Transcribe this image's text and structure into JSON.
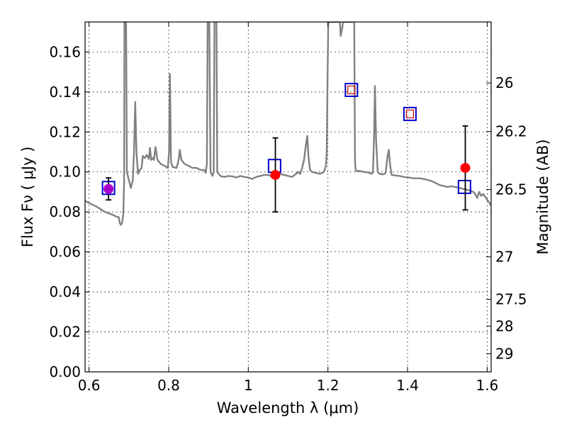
{
  "chart_data": {
    "type": "line",
    "title": "",
    "xlabel": "Wavelength  λ (μm)",
    "ylabel": "Flux  Fν  ( μJy )",
    "y2label": "Magnitude (AB)",
    "xlim": [
      0.59,
      1.61
    ],
    "ylim": [
      0.0,
      0.175
    ],
    "grid": true,
    "grid_style": "dotted",
    "xticks": [
      0.6,
      0.8,
      1.0,
      1.2,
      1.4,
      1.6
    ],
    "xtick_labels": [
      "0.6",
      "0.8",
      "1",
      "1.2",
      "1.4",
      "1.6"
    ],
    "yticks": [
      0.0,
      0.02,
      0.04,
      0.06,
      0.08,
      0.1,
      0.12,
      0.14,
      0.16
    ],
    "ytick_labels": [
      "0.00",
      "0.02",
      "0.04",
      "0.06",
      "0.08",
      "0.10",
      "0.12",
      "0.14",
      "0.16"
    ],
    "right_axis": {
      "label": "Magnitude (AB)",
      "ticks": [
        {
          "mag_label": "26",
          "flux": 0.1445
        },
        {
          "mag_label": "26.2",
          "flux": 0.1202
        },
        {
          "mag_label": "26.5",
          "flux": 0.0912
        },
        {
          "mag_label": "27",
          "flux": 0.0575
        },
        {
          "mag_label": "27.5",
          "flux": 0.0363
        },
        {
          "mag_label": "28",
          "flux": 0.0229
        },
        {
          "mag_label": "29",
          "flux": 0.0091
        }
      ]
    },
    "series": [
      {
        "kind": "spectrum-line",
        "color": "#808080",
        "points": [
          [
            0.59,
            0.0855
          ],
          [
            0.6,
            0.0845
          ],
          [
            0.62,
            0.0825
          ],
          [
            0.64,
            0.08
          ],
          [
            0.66,
            0.0785
          ],
          [
            0.67,
            0.0775
          ],
          [
            0.675,
            0.0773
          ],
          [
            0.677,
            0.0745
          ],
          [
            0.68,
            0.0735
          ],
          [
            0.683,
            0.0745
          ],
          [
            0.686,
            0.0785
          ],
          [
            0.688,
            0.095
          ],
          [
            0.689,
            0.175
          ],
          [
            0.693,
            0.175
          ],
          [
            0.695,
            0.1
          ],
          [
            0.7,
            0.096
          ],
          [
            0.705,
            0.092
          ],
          [
            0.71,
            0.096
          ],
          [
            0.713,
            0.11
          ],
          [
            0.716,
            0.135
          ],
          [
            0.719,
            0.11
          ],
          [
            0.723,
            0.099
          ],
          [
            0.727,
            0.101
          ],
          [
            0.732,
            0.102
          ],
          [
            0.735,
            0.108
          ],
          [
            0.74,
            0.107
          ],
          [
            0.745,
            0.1085
          ],
          [
            0.75,
            0.1065
          ],
          [
            0.753,
            0.112
          ],
          [
            0.756,
            0.106
          ],
          [
            0.76,
            0.107
          ],
          [
            0.763,
            0.106
          ],
          [
            0.767,
            0.1125
          ],
          [
            0.772,
            0.106
          ],
          [
            0.78,
            0.104
          ],
          [
            0.79,
            0.103
          ],
          [
            0.798,
            0.102
          ],
          [
            0.801,
            0.11
          ],
          [
            0.803,
            0.149
          ],
          [
            0.806,
            0.105
          ],
          [
            0.81,
            0.1025
          ],
          [
            0.82,
            0.102
          ],
          [
            0.825,
            0.106
          ],
          [
            0.828,
            0.111
          ],
          [
            0.832,
            0.106
          ],
          [
            0.84,
            0.104
          ],
          [
            0.85,
            0.103
          ],
          [
            0.86,
            0.102
          ],
          [
            0.87,
            0.102
          ],
          [
            0.88,
            0.101
          ],
          [
            0.89,
            0.101
          ],
          [
            0.893,
            0.0995
          ],
          [
            0.896,
            0.104
          ],
          [
            0.898,
            0.175
          ],
          [
            0.902,
            0.175
          ],
          [
            0.905,
            0.1
          ],
          [
            0.91,
            0.098
          ],
          [
            0.913,
            0.1
          ],
          [
            0.915,
            0.175
          ],
          [
            0.92,
            0.175
          ],
          [
            0.922,
            0.1
          ],
          [
            0.93,
            0.098
          ],
          [
            0.94,
            0.0975
          ],
          [
            0.95,
            0.098
          ],
          [
            0.96,
            0.0978
          ],
          [
            0.97,
            0.0972
          ],
          [
            0.98,
            0.098
          ],
          [
            0.99,
            0.0975
          ],
          [
            1.0,
            0.0972
          ],
          [
            1.01,
            0.0965
          ],
          [
            1.02,
            0.0975
          ],
          [
            1.03,
            0.098
          ],
          [
            1.04,
            0.0985
          ],
          [
            1.05,
            0.0985
          ],
          [
            1.06,
            0.0975
          ],
          [
            1.07,
            0.0985
          ],
          [
            1.08,
            0.099
          ],
          [
            1.09,
            0.0985
          ],
          [
            1.1,
            0.098
          ],
          [
            1.11,
            0.0975
          ],
          [
            1.12,
            0.099
          ],
          [
            1.125,
            0.1
          ],
          [
            1.13,
            0.099
          ],
          [
            1.135,
            0.102
          ],
          [
            1.14,
            0.106
          ],
          [
            1.145,
            0.114
          ],
          [
            1.148,
            0.118
          ],
          [
            1.151,
            0.108
          ],
          [
            1.155,
            0.101
          ],
          [
            1.16,
            0.1
          ],
          [
            1.17,
            0.0995
          ],
          [
            1.18,
            0.099
          ],
          [
            1.19,
            0.1
          ],
          [
            1.195,
            0.103
          ],
          [
            1.197,
            0.11
          ],
          [
            1.199,
            0.145
          ],
          [
            1.201,
            0.175
          ],
          [
            1.205,
            0.175
          ],
          [
            1.23,
            0.175
          ],
          [
            1.232,
            0.168
          ],
          [
            1.236,
            0.172
          ],
          [
            1.238,
            0.175
          ],
          [
            1.266,
            0.175
          ],
          [
            1.268,
            0.105
          ],
          [
            1.27,
            0.1005
          ],
          [
            1.28,
            0.1005
          ],
          [
            1.29,
            0.1
          ],
          [
            1.3,
            0.0998
          ],
          [
            1.31,
            0.099
          ],
          [
            1.313,
            0.1
          ],
          [
            1.316,
            0.118
          ],
          [
            1.318,
            0.143
          ],
          [
            1.321,
            0.116
          ],
          [
            1.325,
            0.1
          ],
          [
            1.33,
            0.099
          ],
          [
            1.34,
            0.0988
          ],
          [
            1.345,
            0.0995
          ],
          [
            1.35,
            0.108
          ],
          [
            1.353,
            0.111
          ],
          [
            1.356,
            0.104
          ],
          [
            1.36,
            0.0985
          ],
          [
            1.37,
            0.0982
          ],
          [
            1.38,
            0.098
          ],
          [
            1.39,
            0.0975
          ],
          [
            1.4,
            0.0973
          ],
          [
            1.41,
            0.097
          ],
          [
            1.42,
            0.0968
          ],
          [
            1.43,
            0.0968
          ],
          [
            1.44,
            0.0965
          ],
          [
            1.45,
            0.096
          ],
          [
            1.46,
            0.0955
          ],
          [
            1.47,
            0.0945
          ],
          [
            1.48,
            0.0935
          ],
          [
            1.49,
            0.093
          ],
          [
            1.5,
            0.0925
          ],
          [
            1.51,
            0.0928
          ],
          [
            1.52,
            0.0925
          ],
          [
            1.53,
            0.092
          ],
          [
            1.54,
            0.0915
          ],
          [
            1.55,
            0.091
          ],
          [
            1.56,
            0.0905
          ],
          [
            1.565,
            0.09
          ],
          [
            1.57,
            0.089
          ],
          [
            1.575,
            0.087
          ],
          [
            1.58,
            0.09
          ],
          [
            1.585,
            0.088
          ],
          [
            1.59,
            0.089
          ],
          [
            1.595,
            0.0875
          ],
          [
            1.6,
            0.086
          ],
          [
            1.605,
            0.0848
          ],
          [
            1.61,
            0.083
          ]
        ]
      },
      {
        "kind": "model-photometry",
        "marker": "square",
        "color": "#0000cc",
        "points": [
          [
            0.649,
            0.092
          ],
          [
            1.066,
            0.103
          ],
          [
            1.259,
            0.141
          ],
          [
            1.406,
            0.129
          ],
          [
            1.543,
            0.0925
          ]
        ]
      },
      {
        "kind": "small-squares",
        "marker": "square",
        "color": "#cc0000",
        "points": [
          [
            1.259,
            0.141
          ],
          [
            1.406,
            0.129
          ]
        ]
      },
      {
        "kind": "observed-photometry",
        "marker": "circle",
        "color": "#ff0000",
        "points": [
          {
            "x": 0.649,
            "y": 0.0915,
            "err_low": 0.086,
            "err_high": 0.097,
            "color": "#aa00cc"
          },
          {
            "x": 1.068,
            "y": 0.0985,
            "err_low": 0.08,
            "err_high": 0.117,
            "color": "#ff0000"
          },
          {
            "x": 1.545,
            "y": 0.102,
            "err_low": 0.081,
            "err_high": 0.123,
            "color": "#ff0000"
          }
        ]
      }
    ]
  }
}
